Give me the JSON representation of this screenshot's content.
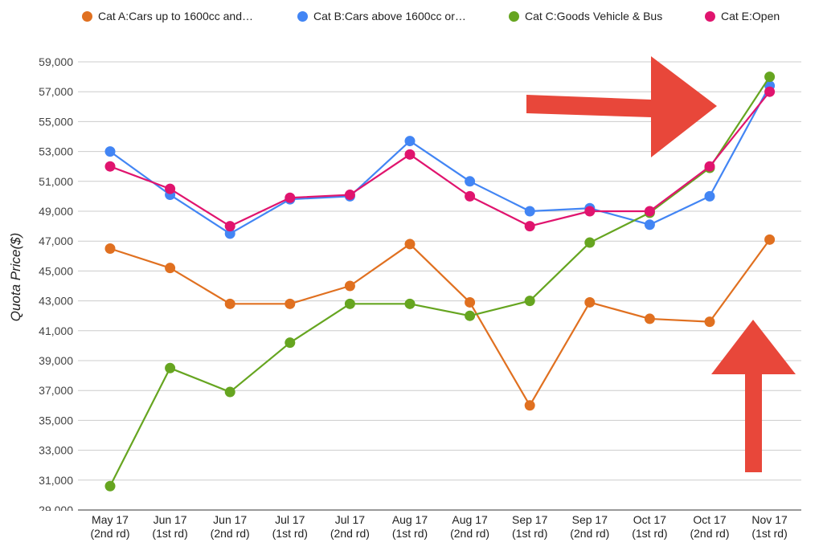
{
  "chart_data": {
    "type": "line",
    "ylabel": "Quota Price($)",
    "ylim": [
      29000,
      59000
    ],
    "yticks": [
      "29,000",
      "31,000",
      "33,000",
      "35,000",
      "37,000",
      "39,000",
      "41,000",
      "43,000",
      "45,000",
      "47,000",
      "49,000",
      "51,000",
      "53,000",
      "55,000",
      "57,000",
      "59,000"
    ],
    "grid": true,
    "legend_position": "top",
    "categories": [
      [
        "May 17",
        "(2nd rd)"
      ],
      [
        "Jun 17",
        "(1st rd)"
      ],
      [
        "Jun 17",
        "(2nd rd)"
      ],
      [
        "Jul 17",
        "(1st rd)"
      ],
      [
        "Jul 17",
        "(2nd rd)"
      ],
      [
        "Aug 17",
        "(1st rd)"
      ],
      [
        "Aug 17",
        "(2nd rd)"
      ],
      [
        "Sep 17",
        "(1st rd)"
      ],
      [
        "Sep 17",
        "(2nd rd)"
      ],
      [
        "Oct 17",
        "(1st rd)"
      ],
      [
        "Oct 17",
        "(2nd rd)"
      ],
      [
        "Nov 17",
        "(1st rd)"
      ]
    ],
    "series": [
      {
        "name": "Cat A:Cars up to 1600cc and…",
        "color": "#e07020",
        "values": [
          46500,
          45200,
          42800,
          42800,
          44000,
          46800,
          42900,
          36000,
          42900,
          41800,
          41600,
          47100
        ]
      },
      {
        "name": "Cat B:Cars above 1600cc or…",
        "color": "#4285f4",
        "values": [
          53000,
          50100,
          47500,
          49800,
          50000,
          53700,
          51000,
          49000,
          49200,
          48100,
          50000,
          57400
        ]
      },
      {
        "name": "Cat C:Goods Vehicle & Bus",
        "color": "#66a520",
        "values": [
          30600,
          38500,
          36900,
          40200,
          42800,
          42800,
          42000,
          43000,
          46900,
          48900,
          51900,
          58000
        ]
      },
      {
        "name": "Cat E:Open",
        "color": "#e0146e",
        "values": [
          52000,
          50500,
          48000,
          49900,
          50100,
          52800,
          50000,
          48000,
          49000,
          49000,
          52000,
          57000
        ]
      }
    ],
    "annotations": [
      {
        "shape": "arrow",
        "direction": "right",
        "color": "#e8473a"
      },
      {
        "shape": "arrow",
        "direction": "up",
        "color": "#e8473a"
      }
    ]
  }
}
